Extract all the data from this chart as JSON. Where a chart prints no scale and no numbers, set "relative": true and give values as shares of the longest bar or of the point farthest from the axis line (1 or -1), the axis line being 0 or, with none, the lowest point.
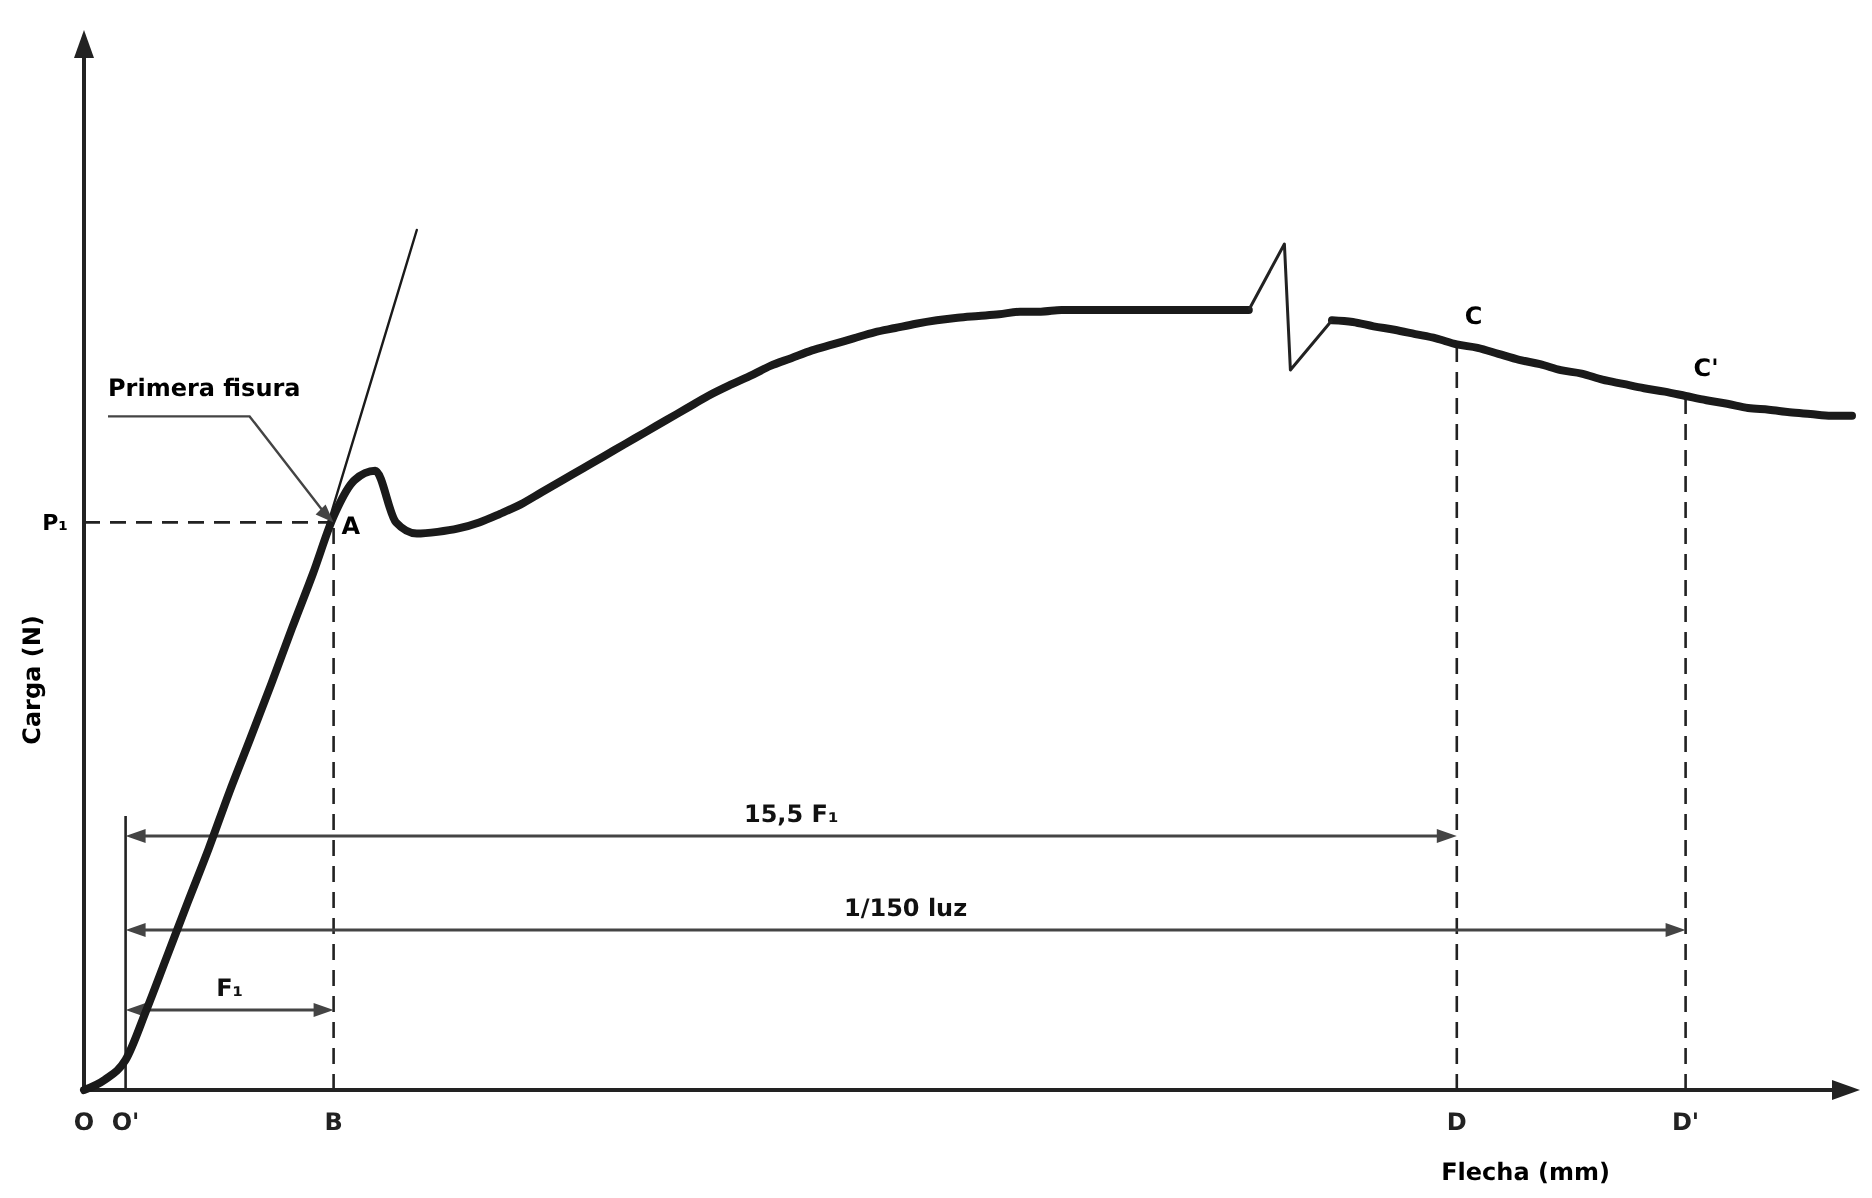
{
  "chart_data": {
    "type": "line",
    "relative": true,
    "xlabel": "Flecha (mm)",
    "ylabel": "Carga (N)",
    "categories": [
      "O",
      null,
      "O'",
      null,
      null,
      null,
      null,
      null,
      null,
      null,
      null,
      null,
      "B",
      null,
      null,
      null,
      null,
      null,
      null,
      null,
      null,
      null,
      null,
      null,
      null,
      null,
      null,
      null,
      null,
      null,
      null,
      null,
      null,
      null,
      null,
      null,
      null,
      null,
      null,
      null,
      null,
      null,
      null,
      null,
      null,
      null,
      null,
      null,
      null,
      null,
      null,
      null,
      null,
      null,
      null,
      null,
      null,
      null,
      null,
      null,
      null,
      null,
      null,
      null,
      null,
      null,
      "D",
      null,
      null,
      null,
      null,
      null,
      null,
      null,
      null,
      null,
      null,
      "D'",
      null,
      null,
      null,
      null,
      null,
      null,
      null,
      null
    ],
    "series": [
      {
        "color": "#1a1a1a",
        "values": [
          0,
          0.012,
          0.035,
          0.093,
          0.156,
          0.219,
          0.281,
          0.347,
          0.409,
          0.472,
          0.537,
          0.6,
          0.667,
          0.709,
          0.72,
          0.66,
          0.647,
          0.649,
          0.653,
          0.66,
          0.67,
          0.681,
          0.695,
          0.709,
          0.723,
          0.737,
          0.751,
          0.765,
          0.779,
          0.793,
          0.807,
          0.819,
          0.83,
          0.842,
          0.851,
          0.86,
          0.867,
          0.874,
          0.881,
          0.886,
          0.891,
          0.895,
          0.898,
          0.9,
          0.902,
          0.905,
          0.905,
          0.907,
          0.907,
          0.907,
          0.907,
          0.907,
          0.907,
          0.907,
          0.907,
          0.907,
          0.907,
          null,
          null,
          null,
          0.895,
          0.893,
          0.888,
          0.884,
          0.879,
          0.874,
          0.867,
          0.863,
          0.856,
          0.849,
          0.844,
          0.837,
          0.833,
          0.826,
          0.821,
          0.816,
          0.812,
          0.807,
          0.802,
          0.798,
          0.793,
          0.791,
          0.788,
          0.786,
          0.784,
          0.784
        ]
      },
      {
        "color": "#1a1a1a",
        "values": [
          null,
          null,
          null,
          null,
          null,
          null,
          null,
          null,
          null,
          null,
          null,
          0.6,
          null,
          null,
          null,
          null,
          1,
          null,
          null,
          null,
          null,
          null,
          null,
          null,
          null,
          null,
          null,
          null,
          null,
          null,
          null,
          null,
          null,
          null,
          null,
          null,
          null,
          null,
          null,
          null,
          null,
          null,
          null,
          null,
          null,
          null,
          null,
          null,
          null,
          null,
          null,
          null,
          null,
          null,
          null,
          null,
          null,
          null,
          null,
          null,
          null,
          null,
          null,
          null,
          null,
          null,
          null,
          null,
          null,
          null,
          null,
          null,
          null,
          null,
          null,
          null,
          null,
          null,
          null,
          null,
          null,
          null,
          null,
          null,
          null,
          null
        ]
      }
    ],
    "ref_lines": [
      {
        "axis": "y",
        "value": 0.66,
        "label": "P₁",
        "line_style": "dashed"
      },
      {
        "axis": "x",
        "value": "B",
        "line_style": "dashed"
      },
      {
        "axis": "x",
        "value": "D",
        "line_style": "dashed"
      },
      {
        "axis": "x",
        "value": "D'",
        "line_style": "dashed"
      }
    ],
    "annotations": [
      {
        "text": "Primera fisura",
        "x": "B",
        "y": 0.66
      },
      {
        "text": "A",
        "x": "B",
        "y": 0.66
      },
      {
        "text": "C",
        "x": "D",
        "y": 0.867
      },
      {
        "text": "C'",
        "x": "D'",
        "y": 0.807
      },
      "F₁",
      "15,5 F₁",
      "1/150 luz"
    ]
  }
}
